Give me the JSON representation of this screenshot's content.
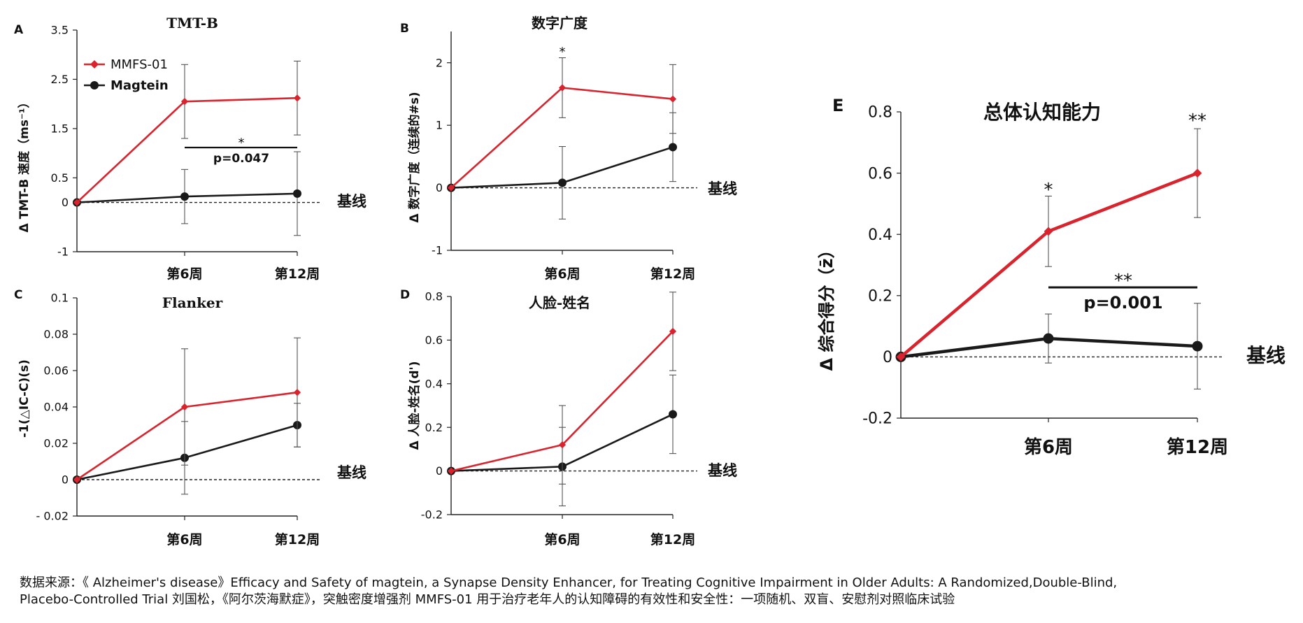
{
  "legend": {
    "series": [
      "MMFS-01",
      "Magtein"
    ]
  },
  "colors": {
    "mmfs": "#d9232d",
    "magtein": "#1a1a1a",
    "axis": "#222222",
    "baseline": "#222222"
  },
  "source": {
    "line1": "数据来源：《 Alzheimer's disease》Efficacy and Safety of magtein, a Synapse Density Enhancer, for Treating Cognitive Impairment in Older Adults: A Randomized,Double-Blind,",
    "line2": "Placebo-Controlled Trial 刘国松，《阿尔茨海默症》，突触密度增强剂 MMFS-01 用于治疗老年人的认知障碍的有效性和安全性：一项随机、双盲、安慰剂对照临床试验"
  },
  "chart_data": [
    {
      "panel": "A",
      "type": "line",
      "title": "TMT-B",
      "ylabel": "Δ TMT-B 速度（ms⁻¹）",
      "categories": [
        "",
        "第6周",
        "第12周"
      ],
      "baseline_label": "基线",
      "ylim": [
        -1,
        3.5
      ],
      "yticks": [
        "-1",
        "0",
        "0.5",
        "1.5",
        "2.5",
        "3.5"
      ],
      "series": [
        {
          "name": "MMFS-01",
          "values": [
            0,
            2.05,
            2.12
          ],
          "err": [
            0,
            0.75,
            0.75
          ]
        },
        {
          "name": "Magtein",
          "values": [
            0,
            0.12,
            0.18
          ],
          "err": [
            0,
            0.55,
            0.85
          ]
        }
      ],
      "annotations": {
        "sig_star": "*",
        "p_value": "p=0.047"
      }
    },
    {
      "panel": "B",
      "type": "line",
      "title": "数字广度",
      "ylabel": "Δ 数字广度（连续的#s)",
      "categories": [
        "",
        "第6周",
        "第12周"
      ],
      "baseline_label": "基线",
      "ylim": [
        -1,
        2.5
      ],
      "yticks": [
        "-1",
        "0",
        "1",
        "2"
      ],
      "series": [
        {
          "name": "MMFS-01",
          "values": [
            0,
            1.6,
            1.42
          ],
          "err": [
            0,
            0.48,
            0.55
          ]
        },
        {
          "name": "Magtein",
          "values": [
            0,
            0.08,
            0.65
          ],
          "err": [
            0,
            0.58,
            0.55
          ]
        }
      ],
      "annotations": {
        "sig_star": "*"
      }
    },
    {
      "panel": "C",
      "type": "line",
      "title": "Flanker",
      "ylabel": "-1(△IC-C)(s)",
      "categories": [
        "",
        "第6周",
        "第12周"
      ],
      "baseline_label": "基线",
      "ylim": [
        -0.02,
        0.1
      ],
      "yticks": [
        "- 0.02",
        "0",
        "0.02",
        "0.04",
        "0.06",
        "0.08",
        "0.1"
      ],
      "series": [
        {
          "name": "MMFS-01",
          "values": [
            0,
            0.04,
            0.048
          ],
          "err": [
            0,
            0.032,
            0.03
          ]
        },
        {
          "name": "Magtein",
          "values": [
            0,
            0.012,
            0.03
          ],
          "err": [
            0,
            0.02,
            0.012
          ]
        }
      ]
    },
    {
      "panel": "D",
      "type": "line",
      "title": "人脸-姓名",
      "ylabel": "Δ 人脸-姓名(d')",
      "categories": [
        "",
        "第6周",
        "第12周"
      ],
      "baseline_label": "基线",
      "ylim": [
        -0.2,
        0.8
      ],
      "yticks": [
        "-0.2",
        "0",
        "0.2",
        "0.4",
        "0.6",
        "0.8"
      ],
      "series": [
        {
          "name": "MMFS-01",
          "values": [
            0,
            0.12,
            0.64
          ],
          "err": [
            0,
            0.18,
            0.18
          ]
        },
        {
          "name": "Magtein",
          "values": [
            0,
            0.02,
            0.26
          ],
          "err": [
            0,
            0.18,
            0.18
          ]
        }
      ]
    },
    {
      "panel": "E",
      "type": "line",
      "title": "总体认知能力",
      "ylabel": "Δ 综合得分（z̄）",
      "categories": [
        "",
        "第6周",
        "第12周"
      ],
      "baseline_label": "基线",
      "ylim": [
        -0.2,
        0.8
      ],
      "yticks": [
        "-0.2",
        "0",
        "0.2",
        "0.4",
        "0.6",
        "0.8"
      ],
      "series": [
        {
          "name": "MMFS-01",
          "values": [
            0,
            0.41,
            0.6
          ],
          "err": [
            0,
            0.115,
            0.145
          ]
        },
        {
          "name": "Magtein",
          "values": [
            0,
            0.06,
            0.035
          ],
          "err": [
            0,
            0.08,
            0.14
          ]
        }
      ],
      "annotations": {
        "stars": [
          "*",
          "**"
        ],
        "sig_star": "**",
        "p_value": "p=0.001"
      }
    }
  ]
}
